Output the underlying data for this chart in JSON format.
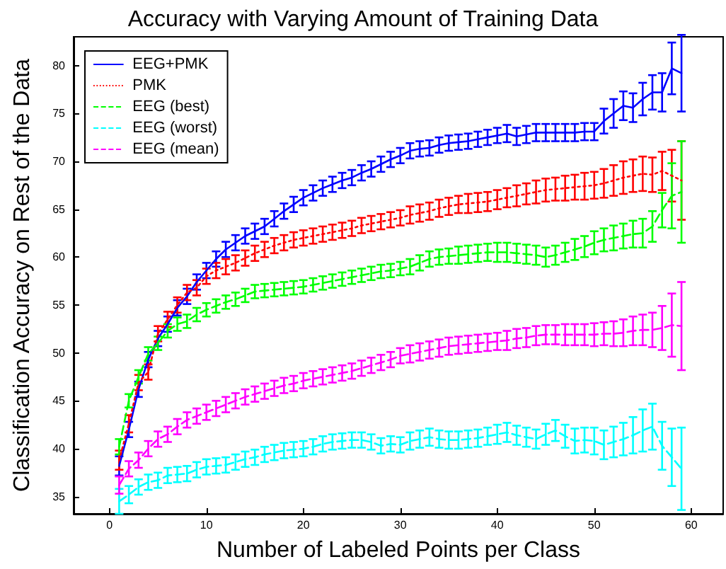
{
  "chart_data": {
    "type": "line",
    "title": "Accuracy with Varying Amount of Training Data",
    "xlabel": "Number of Labeled Points per Class",
    "ylabel": "Classification Accuracy on Rest of the Data",
    "x": [
      1,
      2,
      3,
      4,
      5,
      6,
      7,
      8,
      9,
      10,
      11,
      12,
      13,
      14,
      15,
      16,
      17,
      18,
      19,
      20,
      21,
      22,
      23,
      24,
      25,
      26,
      27,
      28,
      29,
      30,
      31,
      32,
      33,
      34,
      35,
      36,
      37,
      38,
      39,
      40,
      41,
      42,
      43,
      44,
      45,
      46,
      47,
      48,
      49,
      50,
      51,
      52,
      53,
      54,
      55,
      56,
      57,
      58,
      59
    ],
    "xlim": [
      -3.7,
      63.3
    ],
    "xticks": [
      0,
      10,
      20,
      30,
      40,
      50,
      60
    ],
    "ylim": [
      33.2,
      83
    ],
    "yticks": [
      35,
      40,
      45,
      50,
      55,
      60,
      65,
      70,
      75,
      80
    ],
    "grid": false,
    "legend": "top left",
    "marker": "none",
    "series": [
      {
        "name": "EEG+PMK",
        "color": "#0000ff",
        "line_style": "solid",
        "values": [
          38.2,
          42,
          46.2,
          49.3,
          51.5,
          53,
          54.7,
          55.9,
          57.4,
          58.6,
          59.8,
          60.8,
          61.5,
          62.2,
          62.7,
          63.2,
          64,
          64.8,
          65.5,
          66.2,
          66.7,
          67.2,
          67.6,
          68,
          68.3,
          68.8,
          69.2,
          69.7,
          70.2,
          70.6,
          71.1,
          71.3,
          71.4,
          71.7,
          71.9,
          72,
          72.1,
          72.3,
          72.5,
          72.7,
          72.9,
          72.6,
          72.8,
          73,
          73,
          73,
          73,
          73,
          73.1,
          73.1,
          74.2,
          75,
          75.8,
          75.6,
          76.5,
          77.2,
          77.2,
          79.7,
          79.2
        ],
        "errors": [
          1,
          0.8,
          0.8,
          0.8,
          0.8,
          0.8,
          0.8,
          0.8,
          0.8,
          0.8,
          0.8,
          0.8,
          0.8,
          0.8,
          0.8,
          0.8,
          0.8,
          0.8,
          0.8,
          0.8,
          0.8,
          0.8,
          0.8,
          0.8,
          0.8,
          0.8,
          0.8,
          0.8,
          0.8,
          0.8,
          0.8,
          0.8,
          0.8,
          0.8,
          0.8,
          0.8,
          0.8,
          0.8,
          0.8,
          0.8,
          0.9,
          0.9,
          0.9,
          0.9,
          0.9,
          0.9,
          0.9,
          0.9,
          0.9,
          0.9,
          1.3,
          1.5,
          1.5,
          1.5,
          1.7,
          1.8,
          2,
          2.7,
          4
        ]
      },
      {
        "name": "PMK",
        "color": "#ff0000",
        "line_style": "dotted",
        "values": [
          38.8,
          42.6,
          46.9,
          48,
          52,
          53.5,
          55,
          56.3,
          56.8,
          58,
          58.6,
          59,
          59.4,
          59.9,
          60.4,
          60.8,
          61.2,
          61.5,
          61.8,
          62,
          62.2,
          62.4,
          62.6,
          62.8,
          63,
          63.3,
          63.5,
          63.7,
          63.9,
          64.1,
          64.4,
          64.6,
          64.8,
          65.1,
          65.3,
          65.5,
          65.6,
          65.7,
          65.8,
          66,
          66.2,
          66.4,
          66.6,
          66.8,
          67,
          67.1,
          67.2,
          67.3,
          67.4,
          67.5,
          67.7,
          68,
          68.3,
          68.5,
          68.7,
          68.6,
          69,
          68.5,
          68
        ],
        "errors": [
          1,
          0.9,
          0.8,
          0.8,
          0.8,
          0.8,
          0.8,
          0.8,
          0.8,
          0.8,
          0.8,
          0.8,
          0.8,
          0.8,
          0.8,
          0.8,
          0.8,
          0.8,
          0.8,
          0.8,
          0.8,
          0.8,
          0.8,
          0.8,
          0.8,
          0.8,
          0.8,
          0.8,
          0.8,
          0.8,
          0.9,
          0.9,
          0.9,
          0.9,
          0.9,
          0.9,
          1,
          1,
          1,
          1,
          1,
          1.1,
          1.1,
          1.2,
          1.2,
          1.2,
          1.3,
          1.3,
          1.4,
          1.4,
          1.5,
          1.6,
          1.7,
          1.7,
          1.8,
          1.8,
          2,
          2.7,
          4.1
        ]
      },
      {
        "name": "EEG (best)",
        "color": "#00ff00",
        "line_style": "dashed",
        "values": [
          40.2,
          45,
          47.5,
          49.9,
          51,
          52.3,
          53,
          53.3,
          54,
          54.5,
          54.9,
          55.3,
          55.6,
          56,
          56.4,
          56.5,
          56.6,
          56.7,
          56.8,
          56.9,
          57.1,
          57.3,
          57.5,
          57.7,
          57.9,
          58.1,
          58.3,
          58.5,
          58.6,
          58.8,
          59,
          59.4,
          59.8,
          60,
          60.1,
          60.2,
          60.3,
          60.4,
          60.5,
          60.5,
          60.5,
          60.4,
          60.3,
          60.2,
          60,
          60.2,
          60.5,
          60.8,
          61.1,
          61.5,
          61.8,
          62,
          62.2,
          62.4,
          62.5,
          63.2,
          64.9,
          66.4,
          66.8
        ],
        "errors": [
          0.8,
          0.7,
          0.7,
          0.7,
          0.7,
          0.7,
          0.7,
          0.7,
          0.7,
          0.7,
          0.7,
          0.7,
          0.7,
          0.7,
          0.7,
          0.7,
          0.7,
          0.7,
          0.7,
          0.7,
          0.7,
          0.7,
          0.7,
          0.7,
          0.7,
          0.7,
          0.7,
          0.7,
          0.7,
          0.7,
          0.8,
          0.8,
          0.8,
          0.8,
          0.8,
          0.9,
          0.9,
          0.9,
          0.9,
          1,
          1,
          1,
          1,
          1,
          1,
          1,
          1,
          1.1,
          1.1,
          1.2,
          1.2,
          1.3,
          1.3,
          1.4,
          1.5,
          1.6,
          1.8,
          3.4,
          5.3
        ]
      },
      {
        "name": "EEG (worst)",
        "color": "#00ffff",
        "line_style": "dashed",
        "values": [
          34.5,
          35.2,
          36,
          36.5,
          36.7,
          37.2,
          37.3,
          37.4,
          37.8,
          38.1,
          38.2,
          38.3,
          38.6,
          38.9,
          39.1,
          39.4,
          39.6,
          39.8,
          39.9,
          40,
          40.2,
          40.5,
          40.7,
          40.8,
          40.9,
          40.9,
          40.7,
          40.3,
          40.5,
          40.4,
          40.8,
          41,
          41.2,
          41,
          40.9,
          40.9,
          41,
          41.1,
          41.3,
          41.5,
          41.7,
          41.4,
          41.2,
          41,
          41.5,
          41.9,
          41.3,
          40.8,
          40.9,
          40.8,
          40.4,
          40.7,
          41,
          41.4,
          41.9,
          42.3,
          40.3,
          39.1,
          37.9
        ],
        "errors": [
          1.3,
          0.9,
          0.8,
          0.8,
          0.8,
          0.8,
          0.8,
          0.8,
          0.8,
          0.8,
          0.8,
          0.8,
          0.8,
          0.8,
          0.8,
          0.8,
          0.8,
          0.8,
          0.8,
          0.8,
          0.8,
          0.8,
          0.8,
          0.8,
          0.8,
          0.8,
          0.8,
          0.8,
          0.8,
          0.8,
          0.9,
          0.9,
          0.9,
          0.9,
          0.9,
          0.9,
          0.9,
          0.9,
          0.9,
          1,
          1,
          1,
          1,
          1,
          1.1,
          1.1,
          1.2,
          1.3,
          1.3,
          1.4,
          1.5,
          1.6,
          1.7,
          1.9,
          2.2,
          2.4,
          2.5,
          3,
          4.3
        ]
      },
      {
        "name": "EEG (mean)",
        "color": "#ff00ff",
        "line_style": "dashed",
        "values": [
          36.2,
          37.9,
          38.8,
          40,
          41,
          41.5,
          42.3,
          43,
          43.4,
          43.8,
          44.2,
          44.6,
          45,
          45.4,
          45.7,
          46,
          46.3,
          46.6,
          46.8,
          47.1,
          47.3,
          47.5,
          47.7,
          47.9,
          48.1,
          48.4,
          48.7,
          49,
          49.3,
          49.7,
          49.9,
          50.1,
          50.3,
          50.5,
          50.7,
          50.8,
          50.9,
          51,
          51.1,
          51.2,
          51.3,
          51.5,
          51.6,
          51.8,
          51.9,
          51.9,
          51.9,
          51.9,
          51.9,
          51.9,
          52,
          52,
          52.1,
          52.3,
          52.4,
          52.4,
          52.6,
          52.9,
          52.8
        ],
        "errors": [
          0.9,
          0.8,
          0.8,
          0.8,
          0.8,
          0.8,
          0.8,
          0.8,
          0.8,
          0.8,
          0.8,
          0.8,
          0.8,
          0.8,
          0.8,
          0.8,
          0.8,
          0.8,
          0.8,
          0.8,
          0.8,
          0.8,
          0.8,
          0.8,
          0.8,
          0.8,
          0.8,
          0.8,
          0.8,
          0.8,
          0.9,
          0.9,
          0.9,
          0.9,
          0.9,
          0.9,
          0.9,
          0.9,
          0.9,
          0.9,
          1,
          1,
          1,
          1,
          1,
          1,
          1.1,
          1.1,
          1.1,
          1.2,
          1.2,
          1.3,
          1.4,
          1.5,
          1.6,
          1.8,
          2.3,
          3.3,
          4.6
        ]
      }
    ]
  }
}
